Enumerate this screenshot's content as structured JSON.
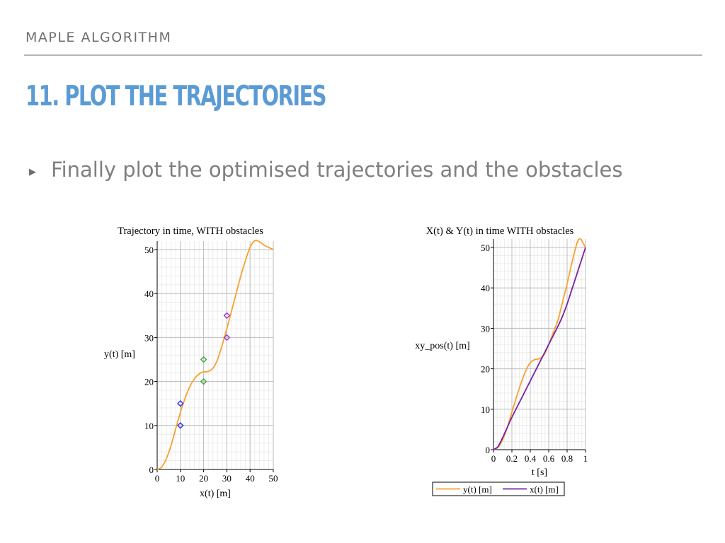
{
  "slide": {
    "section_label": "MAPLE ALGORITHM",
    "title": "11.  PLOT THE TRAJECTORIES",
    "bullet_marker": "▶",
    "bullet_text": "Finally plot the optimised trajectories and the obstacles"
  },
  "colors": {
    "title": "#5b9bd5",
    "orange": "#f7a12f",
    "purple": "#7a1fa2",
    "obstacle_blue": "#3c3cf0",
    "obstacle_green": "#4aa84a",
    "obstacle_purple": "#a040c8"
  },
  "chart_data": [
    {
      "type": "line",
      "title": "Trajectory in time, WITH obstacles",
      "xlabel": "x(t) [m]",
      "ylabel": "y(t) [m]",
      "xlim": [
        0,
        50
      ],
      "ylim": [
        0,
        50
      ],
      "x_ticks": [
        0,
        10,
        20,
        30,
        40,
        50
      ],
      "y_ticks": [
        0,
        10,
        20,
        30,
        40,
        50
      ],
      "x_tick_labels": [
        "0",
        "10",
        "20",
        "30",
        "40",
        "50"
      ],
      "y_tick_labels": [
        "0",
        "10",
        "20",
        "30",
        "40",
        "50"
      ],
      "grid": true,
      "series": [
        {
          "color": "#f7a12f",
          "x": [
            0,
            2,
            4,
            6,
            8,
            10,
            12,
            14,
            16,
            18,
            20,
            22,
            24,
            26,
            28,
            30,
            32,
            34,
            36,
            38,
            40,
            42,
            44,
            46,
            48,
            50
          ],
          "y": [
            0,
            0.6,
            2.5,
            5.5,
            9.3,
            13,
            16.2,
            18.8,
            20.6,
            21.7,
            22.2,
            22.3,
            23,
            25,
            28.3,
            32,
            36,
            40,
            44,
            47.5,
            50.5,
            52,
            51.8,
            51,
            50.5,
            50
          ]
        }
      ],
      "obstacles": [
        {
          "x": 10,
          "y": 10,
          "color": "#3c3cf0"
        },
        {
          "x": 10,
          "y": 15,
          "color": "#3c3cf0"
        },
        {
          "x": 20,
          "y": 20,
          "color": "#4aa84a"
        },
        {
          "x": 20,
          "y": 25,
          "color": "#4aa84a"
        },
        {
          "x": 30,
          "y": 30,
          "color": "#a040c8"
        },
        {
          "x": 30,
          "y": 35,
          "color": "#a040c8"
        }
      ]
    },
    {
      "type": "line",
      "title": "X(t) & Y(t) in time WITH obstacles",
      "xlabel": "t [s]",
      "ylabel": "xy_pos(t) [m]",
      "xlim": [
        0,
        1
      ],
      "ylim": [
        0,
        50
      ],
      "x_ticks": [
        0,
        0.2,
        0.4,
        0.6,
        0.8,
        1
      ],
      "y_ticks": [
        0,
        10,
        20,
        30,
        40,
        50
      ],
      "x_tick_labels": [
        "0",
        "0.2",
        "0.4",
        "0.6",
        "0.8",
        "1"
      ],
      "y_tick_labels": [
        "0",
        "10",
        "20",
        "30",
        "40",
        "50"
      ],
      "grid": true,
      "legend_position": "bottom",
      "series": [
        {
          "name": "y(t) [m]",
          "color": "#f7a12f",
          "x": [
            0,
            0.05,
            0.1,
            0.15,
            0.2,
            0.25,
            0.3,
            0.35,
            0.4,
            0.45,
            0.5,
            0.55,
            0.6,
            0.65,
            0.7,
            0.75,
            0.8,
            0.85,
            0.9,
            0.925,
            0.95,
            0.975,
            1
          ],
          "y": [
            0,
            0.6,
            2.5,
            5.5,
            9.3,
            13,
            16.5,
            19.5,
            21.5,
            22.3,
            22.5,
            23.5,
            26,
            29,
            32,
            36.5,
            41,
            46,
            50.5,
            52,
            52,
            51,
            50
          ]
        },
        {
          "name": "x(t) [m]",
          "color": "#7a1fa2",
          "x": [
            0,
            0.05,
            0.1,
            0.15,
            0.2,
            0.3,
            0.4,
            0.5,
            0.6,
            0.7,
            0.75,
            0.8,
            0.85,
            0.9,
            0.95,
            1
          ],
          "y": [
            0,
            0.8,
            3,
            5.5,
            8,
            12.5,
            17,
            21.5,
            26,
            30.5,
            33,
            36,
            39.5,
            43,
            46.5,
            50
          ]
        }
      ]
    }
  ]
}
